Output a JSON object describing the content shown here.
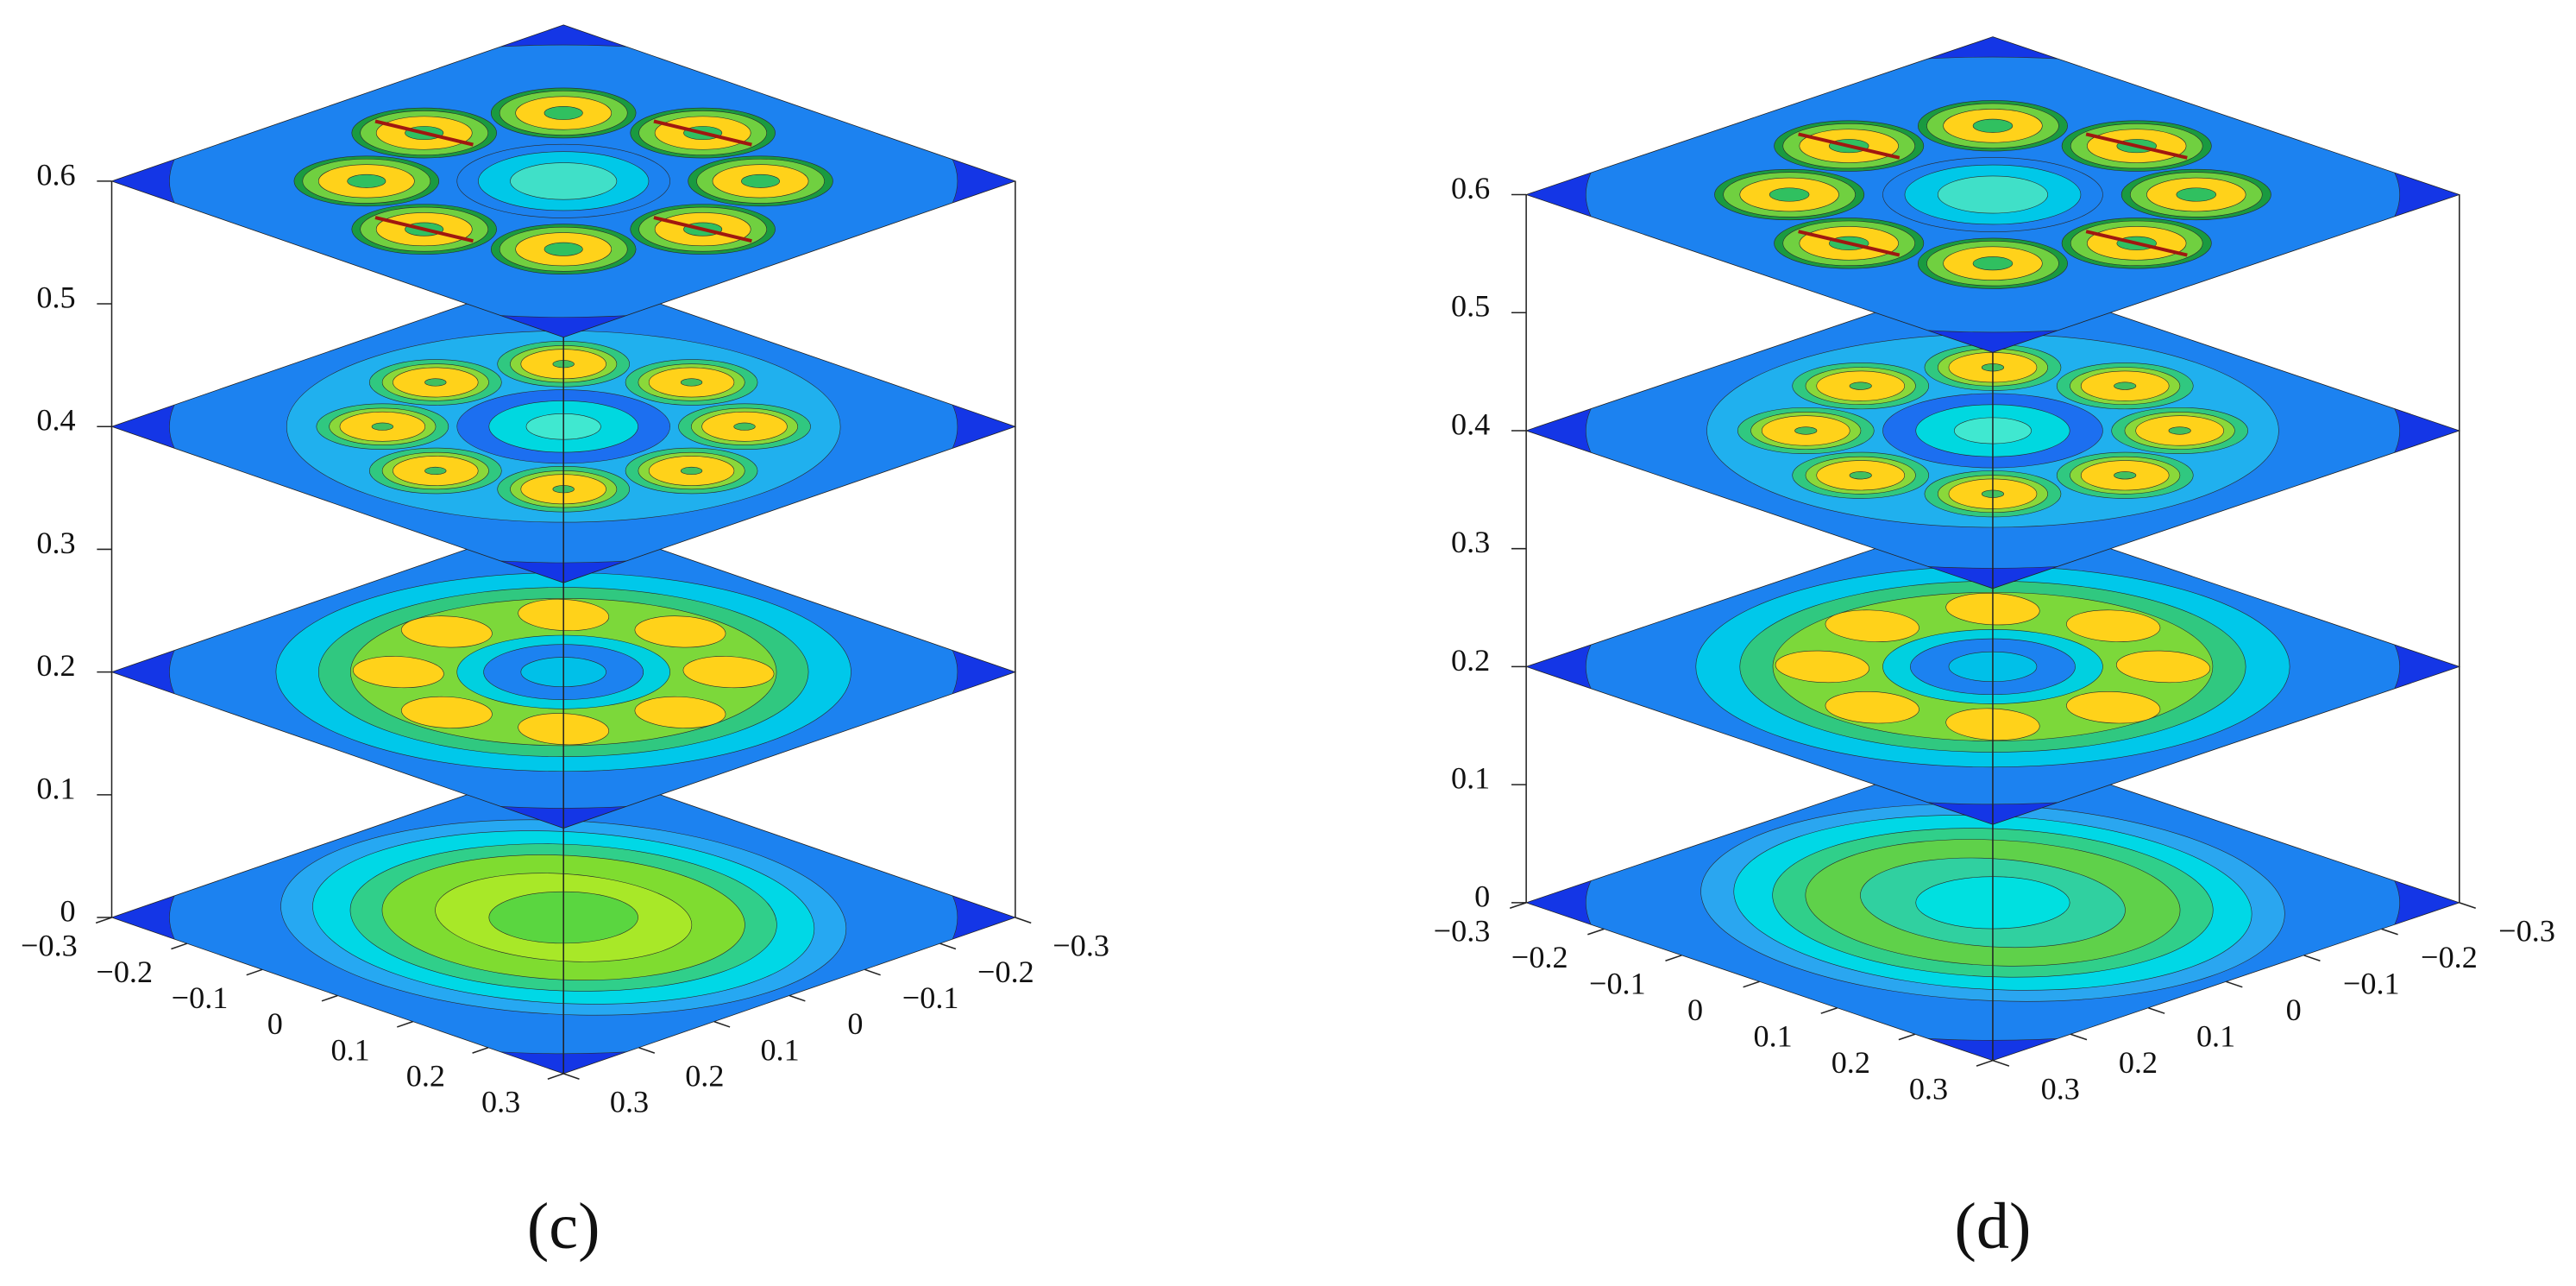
{
  "chart_data": [
    {
      "type": "contour-slices",
      "caption": "(c)",
      "zlim": [
        0,
        0.6
      ],
      "zticks": [
        0,
        0.1,
        0.2,
        0.3,
        0.4,
        0.5,
        0.6
      ],
      "xlim": [
        -0.3,
        0.3
      ],
      "xticks": [
        {
          "value": -0.3,
          "label": "−0.3"
        },
        {
          "value": -0.2,
          "label": "−0.2"
        },
        {
          "value": -0.1,
          "label": "−0.1"
        },
        0,
        0.1,
        0.2,
        0.3
      ],
      "ylim": [
        -0.3,
        0.3
      ],
      "yticks": [
        {
          "value": -0.3,
          "label": "−0.3"
        },
        {
          "value": -0.2,
          "label": "−0.2"
        },
        {
          "value": -0.1,
          "label": "−0.1"
        },
        0,
        0.1,
        0.2,
        0.3
      ],
      "slices": [
        0,
        0.2,
        0.4,
        0.6
      ]
    },
    {
      "type": "contour-slices",
      "caption": "(d)",
      "zlim": [
        0,
        0.6
      ],
      "zticks": [
        0,
        0.1,
        0.2,
        0.3,
        0.4,
        0.5,
        0.6
      ],
      "xlim": [
        -0.3,
        0.3
      ],
      "xticks": [
        {
          "value": -0.3,
          "label": "−0.3"
        },
        {
          "value": -0.2,
          "label": "−0.2"
        },
        {
          "value": -0.1,
          "label": "−0.1"
        },
        0,
        0.1,
        0.2,
        0.3
      ],
      "ylim": [
        -0.3,
        0.3
      ],
      "yticks": [
        {
          "value": -0.3,
          "label": "−0.3"
        },
        {
          "value": -0.2,
          "label": "−0.2"
        },
        {
          "value": -0.1,
          "label": "−0.1"
        },
        0,
        0.1,
        0.2,
        0.3
      ],
      "slices": [
        0,
        0.2,
        0.4,
        0.6
      ]
    }
  ]
}
